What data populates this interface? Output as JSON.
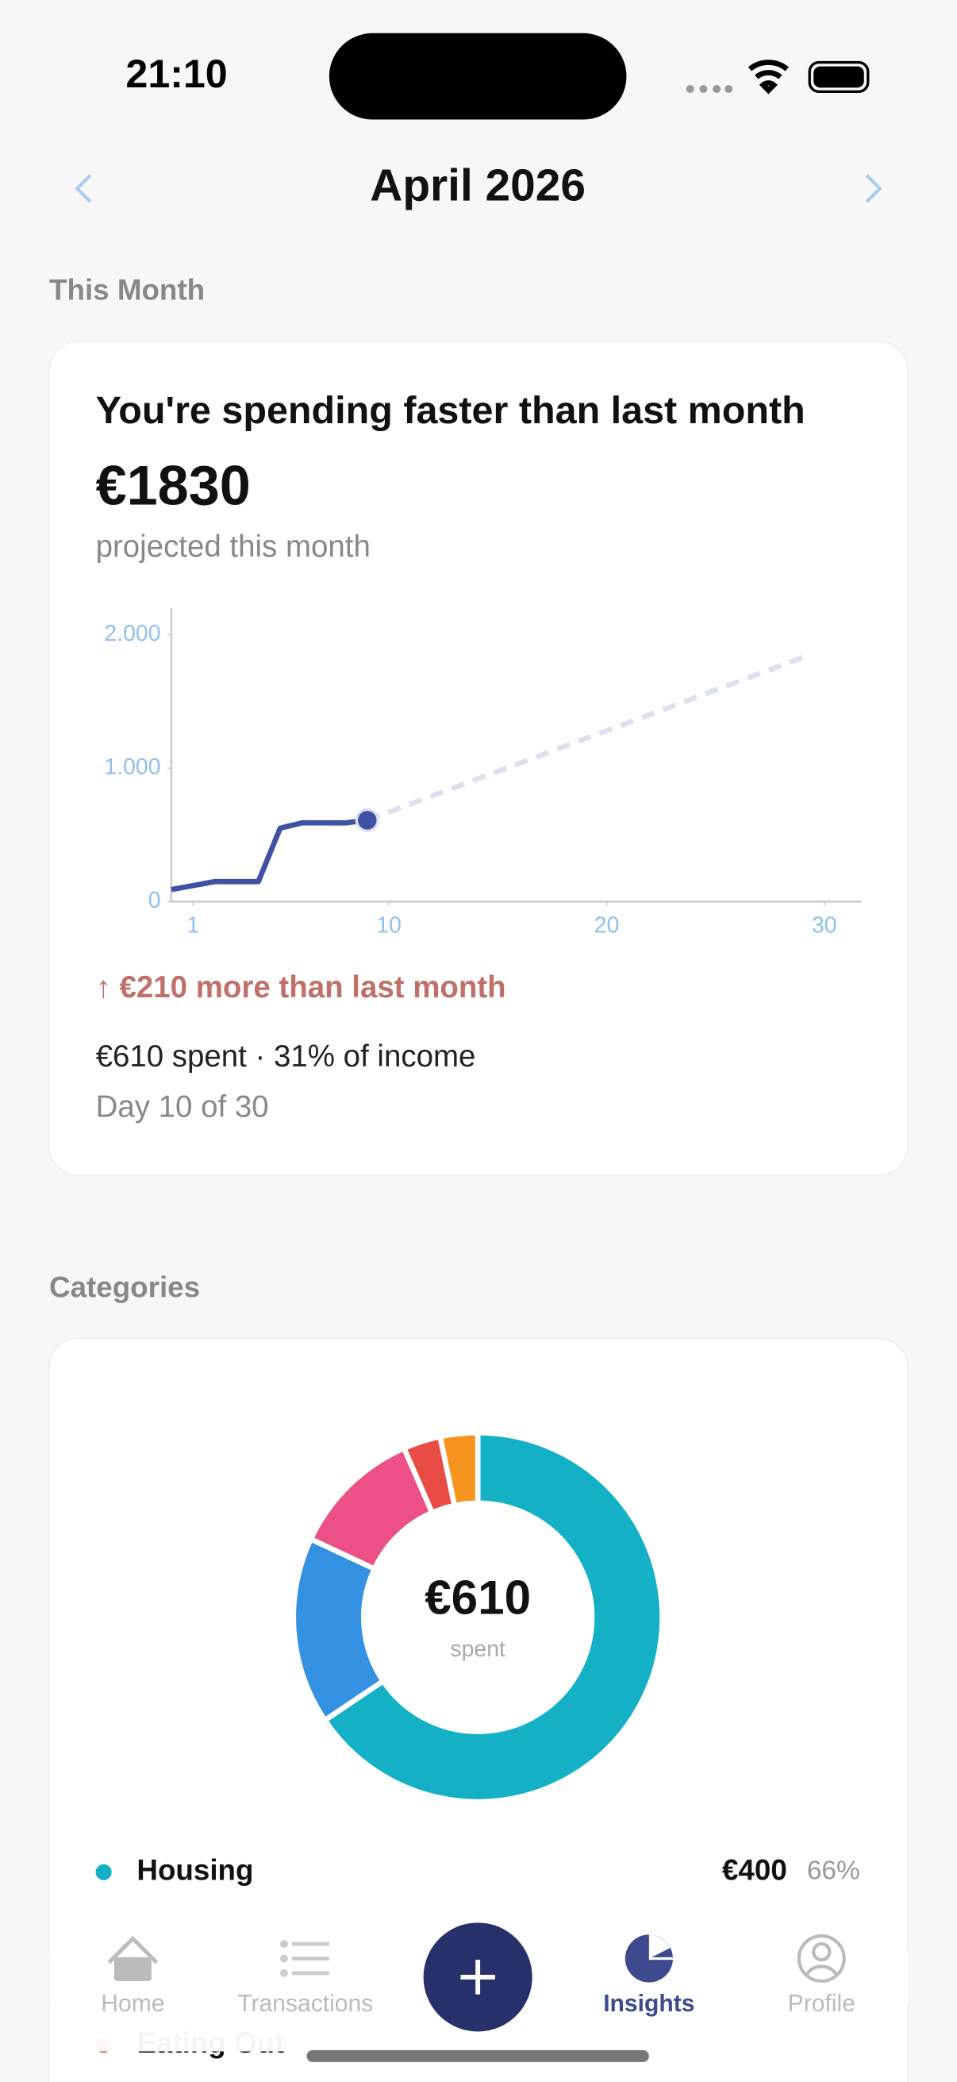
{
  "status_bar": {
    "time": "21:10"
  },
  "header": {
    "title": "April 2026"
  },
  "this_month": {
    "section_title": "This Month",
    "card_title": "You're spending faster than last month",
    "projected": "€1830",
    "projected_caption": "projected this month",
    "chart": {
      "type": "line",
      "actual": {
        "color": "#3f51a3",
        "x": [
          0,
          2,
          4,
          5,
          6,
          8,
          9
        ],
        "values": [
          90,
          150,
          150,
          550,
          590,
          590,
          610
        ]
      },
      "projection": {
        "color": "#dde1ee",
        "x": [
          9,
          29
        ],
        "values": [
          610,
          1830
        ]
      },
      "xlim": [
        0,
        31.7
      ],
      "xticks": [
        1,
        10,
        20,
        30
      ],
      "ylim": [
        0,
        2200
      ],
      "yticks": [
        0,
        {
          "value": 1000,
          "label": "1.000"
        },
        {
          "value": 2000,
          "label": "2.000"
        }
      ]
    },
    "comparison": "↑ €210 more than last month",
    "summary": "€610 spent · 31% of income",
    "day": "Day 10 of 30"
  },
  "categories": {
    "section_title": "Categories",
    "donut": {
      "type": "pie",
      "center_value": "€610",
      "center_caption": "spent",
      "values": [
        400,
        100,
        70,
        20,
        20
      ],
      "colors": [
        "#14b1c6",
        "#3592e2",
        "#ec5086",
        "#e84c45",
        "#f7941d"
      ]
    },
    "rows": [
      {
        "name": "Housing",
        "color": "#14b1c6",
        "amount": "€400",
        "share": "66%"
      },
      {
        "name": "Eating Out",
        "color": "#e84c45"
      }
    ]
  },
  "tab_bar": {
    "tabs": [
      "Home",
      "Transactions",
      "Insights",
      "Profile"
    ]
  }
}
